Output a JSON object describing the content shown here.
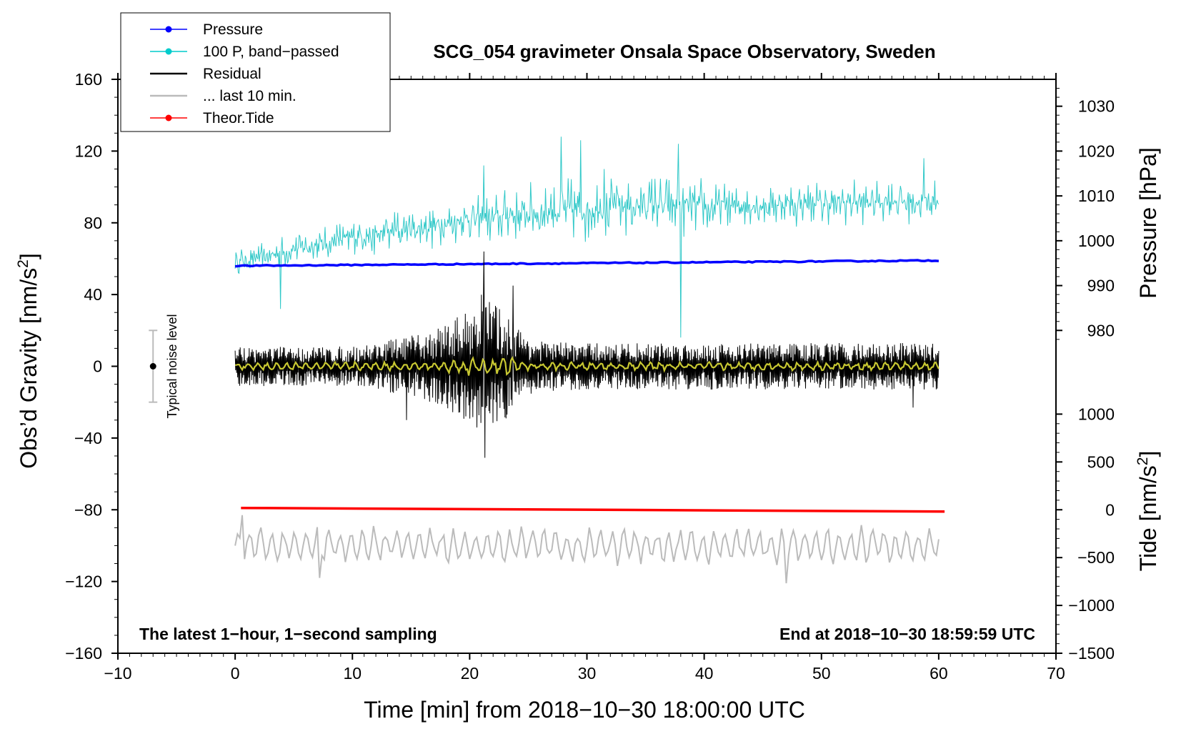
{
  "chart_data": {
    "type": "line",
    "title": "SCG_054 gravimeter Onsala Space Observatory, Sweden",
    "xlabel": "Time [min] from 2018−10−30 18:00:00 UTC",
    "ylabel_left": "Obs’d Gravity [nm/s²]",
    "ylabel_right_pressure": "Pressure [hPa]",
    "ylabel_right_tide": "Tide [nm/s²]",
    "xlim": [
      -10,
      70
    ],
    "ylim": [
      -160,
      160
    ],
    "x_ticks": [
      -10,
      0,
      10,
      20,
      30,
      40,
      50,
      60,
      70
    ],
    "x_tick_labels": [
      "−10",
      "0",
      "10",
      "20",
      "30",
      "40",
      "50",
      "60",
      "70"
    ],
    "y_ticks": [
      -160,
      -120,
      -80,
      -40,
      0,
      40,
      80,
      120,
      160
    ],
    "y_tick_labels": [
      "−160",
      "−120",
      "−80",
      "−40",
      "0",
      "40",
      "80",
      "120",
      "160"
    ],
    "pressure_ticks": [
      980,
      990,
      1000,
      1010,
      1020,
      1030
    ],
    "pressure_tick_labels": [
      "980",
      "990",
      "1000",
      "1010",
      "1020",
      "1030"
    ],
    "pressure_mapping": {
      "ref_hpa": 980,
      "ref_gravity": 20,
      "hpa_per_gravity_unit": 0.4
    },
    "tide_ticks": [
      -1500,
      -1000,
      -500,
      0,
      500,
      1000
    ],
    "tide_tick_labels": [
      "−1500",
      "−1000",
      "−500",
      "0",
      "500",
      "1000"
    ],
    "tide_mapping": {
      "ref_tide": 0,
      "ref_gravity": -80,
      "tide_per_gravity_unit": 18.75
    },
    "note_left": "The latest 1−hour, 1−second sampling",
    "note_right": "End at 2018−10−30 18:59:59 UTC",
    "noise_level": {
      "label": "Typical noise level",
      "x": -7,
      "center": 0,
      "halfwidth": 20
    },
    "legend": {
      "placement": "top-left",
      "entries": [
        {
          "label": "Pressure",
          "color": "#0000ff",
          "marker": true
        },
        {
          "label": "100 P, band−passed",
          "color": "#00cccc",
          "marker": true
        },
        {
          "label": "Residual",
          "color": "#000000",
          "marker": false
        },
        {
          "label": "... last 10 min.",
          "color": "#bbbbbb",
          "marker": false
        },
        {
          "label": "Theor.Tide",
          "color": "#ff0000",
          "marker": true
        }
      ]
    },
    "series": [
      {
        "name": "Pressure",
        "color": "#0000ff",
        "units": "gravity-axis",
        "x_start": 0,
        "x_end": 60,
        "y_start": 56,
        "y_end": 59
      },
      {
        "name": "100 P, band−passed",
        "color": "#30c8c8",
        "x_start": 0,
        "x_end": 60,
        "envelope_x": [
          0,
          5,
          10,
          15,
          20,
          25,
          30,
          35,
          40,
          45,
          50,
          55,
          60
        ],
        "envelope_center": [
          58,
          65,
          72,
          76,
          82,
          85,
          88,
          90,
          89,
          90,
          91,
          92,
          92
        ],
        "envelope_amp": [
          8,
          10,
          12,
          14,
          14,
          18,
          20,
          18,
          18,
          14,
          14,
          13,
          13
        ],
        "spikes": [
          {
            "x": 27.8,
            "y": 128
          },
          {
            "x": 29.5,
            "y": 126
          },
          {
            "x": 37.8,
            "y": 124
          },
          {
            "x": 38.0,
            "y": 16
          },
          {
            "x": 3.9,
            "y": 32
          },
          {
            "x": 21.2,
            "y": 112
          },
          {
            "x": 31.5,
            "y": 110
          },
          {
            "x": 58.7,
            "y": 116
          }
        ]
      },
      {
        "name": "Residual",
        "color": "#000000",
        "x_start": 0,
        "x_end": 60,
        "envelope_x": [
          0,
          10,
          14,
          16,
          18,
          20,
          21,
          22,
          23,
          24,
          26,
          30,
          40,
          50,
          60
        ],
        "envelope_amp": [
          11,
          11,
          16,
          18,
          24,
          32,
          42,
          36,
          30,
          22,
          14,
          13,
          13,
          13,
          13
        ],
        "spikes": [
          {
            "x": 21.2,
            "y": 64
          },
          {
            "x": 21.3,
            "y": -51
          },
          {
            "x": 23.7,
            "y": 45
          },
          {
            "x": 14.6,
            "y": -30
          },
          {
            "x": 57.8,
            "y": -23
          }
        ]
      },
      {
        "name": "Residual (smoothed)",
        "color": "#c8c832",
        "x_start": 0,
        "x_end": 60,
        "amp": 2.5
      },
      {
        "name": "Theor.Tide",
        "color": "#ff0000",
        "x_start": 0.5,
        "x_end": 60.5,
        "y_start": -79,
        "y_end": -81
      },
      {
        "name": "... last 10 min.",
        "color": "#bbbbbb",
        "x_start": 0,
        "x_end": 60,
        "center": -100,
        "amp": 9,
        "spikes": [
          {
            "x": 7.3,
            "y": -81
          },
          {
            "x": 7.2,
            "y": -118
          },
          {
            "x": 47.1,
            "y": -121
          },
          {
            "x": 0.7,
            "y": -83
          }
        ]
      }
    ]
  }
}
